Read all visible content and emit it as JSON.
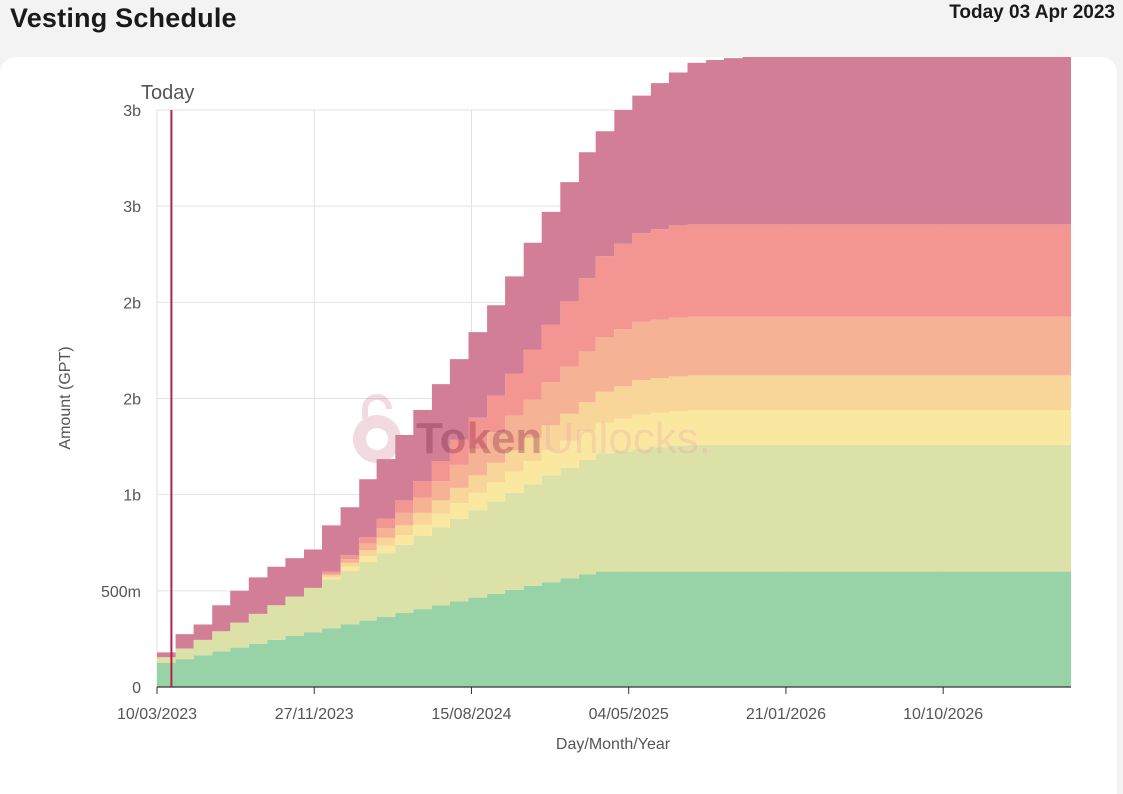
{
  "header": {
    "title": "Vesting Schedule",
    "today_label": "Today 03 Apr 2023"
  },
  "watermark": {
    "part1": "Token",
    "part2": "Unlocks."
  },
  "chart_data": {
    "type": "area",
    "stacked": true,
    "step": true,
    "title": "",
    "xlabel": "Day/Month/Year",
    "ylabel": "Amount (GPT)",
    "x_ticks": [
      "10/03/2023",
      "27/11/2023",
      "15/08/2024",
      "04/05/2025",
      "21/01/2026",
      "10/10/2026"
    ],
    "y_ticks": [
      "0",
      "500m",
      "1b",
      "2b",
      "2b",
      "3b",
      "3b"
    ],
    "ylim": [
      0,
      3000000000
    ],
    "xlim": [
      "10/03/2023",
      "11/05/2027"
    ],
    "grid": true,
    "today_marker": {
      "label": "Today",
      "date": "03/04/2023"
    },
    "colors": [
      "#97d3a7",
      "#dce1a7",
      "#fae8a0",
      "#f8d598",
      "#f5b294",
      "#f39590",
      "#d27e97"
    ],
    "x": [
      "10/03/2023",
      "10/04/2023",
      "10/05/2023",
      "10/06/2023",
      "10/07/2023",
      "10/08/2023",
      "10/09/2023",
      "10/10/2023",
      "10/11/2023",
      "10/12/2023",
      "10/01/2024",
      "10/02/2024",
      "10/03/2024",
      "10/04/2024",
      "10/05/2024",
      "10/06/2024",
      "10/07/2024",
      "10/08/2024",
      "10/09/2024",
      "10/10/2024",
      "10/11/2024",
      "10/12/2024",
      "10/01/2025",
      "10/02/2025",
      "10/03/2025",
      "10/04/2025",
      "10/05/2025",
      "10/06/2025",
      "10/07/2025",
      "10/08/2025",
      "10/09/2025",
      "10/10/2025",
      "10/11/2025",
      "10/12/2025",
      "10/01/2026",
      "10/02/2026",
      "10/03/2026",
      "10/04/2026",
      "10/05/2026",
      "10/06/2026",
      "10/07/2026",
      "10/08/2026",
      "10/09/2026",
      "10/10/2026",
      "10/11/2026",
      "10/12/2026",
      "10/01/2027",
      "10/02/2027",
      "10/03/2027",
      "10/04/2027"
    ],
    "series": [
      {
        "values": [
          125,
          145,
          165,
          185,
          205,
          225,
          245,
          265,
          285,
          305,
          325,
          345,
          365,
          385,
          405,
          425,
          445,
          465,
          485,
          505,
          525,
          545,
          565,
          585,
          600,
          600,
          600,
          600,
          600,
          600,
          600,
          600,
          600,
          600,
          600,
          600,
          600,
          600,
          600,
          600,
          600,
          600,
          600,
          600,
          600,
          600,
          600,
          600,
          600,
          600
        ]
      },
      {
        "values": [
          30,
          55,
          80,
          105,
          130,
          155,
          180,
          205,
          230,
          255,
          280,
          305,
          330,
          355,
          380,
          405,
          430,
          455,
          480,
          505,
          530,
          555,
          575,
          595,
          615,
          625,
          635,
          645,
          655,
          660,
          660,
          660,
          660,
          660,
          660,
          660,
          660,
          660,
          660,
          660,
          660,
          660,
          660,
          660,
          660,
          660,
          660,
          660,
          660,
          660
        ]
      },
      {
        "values": [
          0,
          0,
          0,
          0,
          0,
          0,
          0,
          0,
          0,
          10,
          20,
          30,
          40,
          50,
          60,
          70,
          80,
          90,
          100,
          110,
          120,
          130,
          140,
          150,
          160,
          170,
          180,
          180,
          180,
          180,
          180,
          180,
          180,
          180,
          180,
          180,
          180,
          180,
          180,
          180,
          180,
          180,
          180,
          180,
          180,
          180,
          180,
          180,
          180,
          180
        ]
      },
      {
        "values": [
          0,
          0,
          0,
          0,
          0,
          0,
          0,
          0,
          0,
          10,
          20,
          30,
          40,
          50,
          60,
          70,
          80,
          90,
          100,
          110,
          120,
          130,
          140,
          150,
          160,
          170,
          180,
          180,
          180,
          180,
          180,
          180,
          180,
          180,
          180,
          180,
          180,
          180,
          180,
          180,
          180,
          180,
          180,
          180,
          180,
          180,
          180,
          180,
          180,
          180
        ]
      },
      {
        "values": [
          0,
          0,
          0,
          0,
          0,
          0,
          0,
          0,
          0,
          10,
          20,
          35,
          50,
          65,
          80,
          100,
          120,
          140,
          160,
          180,
          200,
          225,
          245,
          265,
          285,
          295,
          305,
          305,
          305,
          305,
          305,
          305,
          305,
          305,
          305,
          305,
          305,
          305,
          305,
          305,
          305,
          305,
          305,
          305,
          305,
          305,
          305,
          305,
          305,
          305
        ]
      },
      {
        "values": [
          0,
          0,
          0,
          0,
          0,
          0,
          0,
          0,
          0,
          10,
          20,
          35,
          50,
          65,
          85,
          105,
          130,
          160,
          190,
          220,
          260,
          300,
          340,
          380,
          420,
          445,
          460,
          470,
          480,
          480,
          480,
          480,
          480,
          480,
          480,
          480,
          480,
          480,
          480,
          480,
          480,
          480,
          480,
          480,
          480,
          480,
          480,
          480,
          480,
          480
        ]
      },
      {
        "values": [
          25,
          75,
          80,
          135,
          165,
          190,
          200,
          200,
          200,
          240,
          250,
          300,
          310,
          340,
          370,
          400,
          420,
          445,
          470,
          505,
          555,
          585,
          620,
          655,
          650,
          695,
          715,
          760,
          795,
          840,
          855,
          865,
          875,
          880,
          895,
          900,
          915,
          920,
          935,
          945,
          955,
          965,
          975,
          990,
          1000,
          1015,
          1025,
          1040,
          1050,
          1060
        ]
      }
    ]
  }
}
